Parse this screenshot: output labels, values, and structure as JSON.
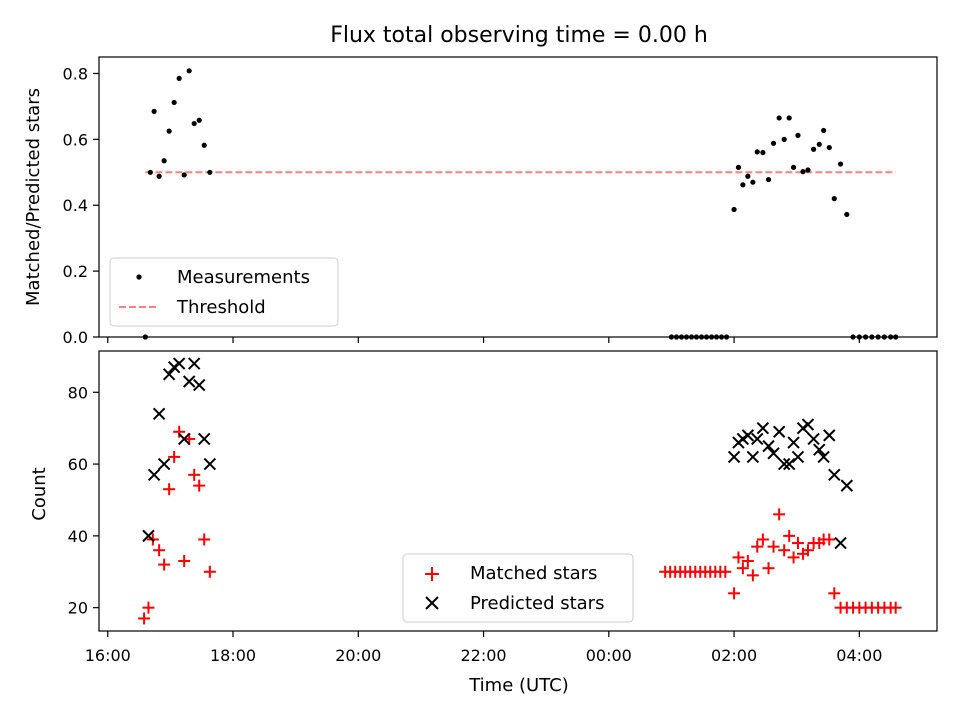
{
  "chart_data": [
    {
      "type": "scatter",
      "title": "Flux total observing time = 0.00 h",
      "xlabel": "",
      "ylabel": "Matched/Predicted stars",
      "xlim": [
        15.86,
        29.24
      ],
      "ylim": [
        0,
        0.85
      ],
      "yticks": [
        "0.0",
        "0.2",
        "0.4",
        "0.6",
        "0.8"
      ],
      "legend": {
        "position": "lower-left",
        "entries": [
          "Measurements",
          "Threshold"
        ]
      },
      "threshold": {
        "name": "Threshold",
        "value": 0.5,
        "x": [
          16.6,
          28.58
        ],
        "color": "#ff8080"
      },
      "series": [
        {
          "name": "Measurements",
          "color": "#000000",
          "points": [
            [
              16.6,
              0.0
            ],
            [
              16.68,
              0.5
            ],
            [
              16.74,
              0.685
            ],
            [
              16.82,
              0.488
            ],
            [
              16.9,
              0.535
            ],
            [
              16.98,
              0.625
            ],
            [
              17.06,
              0.712
            ],
            [
              17.14,
              0.785
            ],
            [
              17.22,
              0.492
            ],
            [
              17.3,
              0.808
            ],
            [
              17.38,
              0.648
            ],
            [
              17.46,
              0.658
            ],
            [
              17.54,
              0.582
            ],
            [
              17.63,
              0.5
            ],
            [
              26.0,
              0.387
            ],
            [
              26.07,
              0.515
            ],
            [
              26.14,
              0.462
            ],
            [
              26.22,
              0.488
            ],
            [
              26.3,
              0.47
            ],
            [
              26.37,
              0.562
            ],
            [
              26.46,
              0.56
            ],
            [
              26.55,
              0.478
            ],
            [
              26.63,
              0.588
            ],
            [
              26.72,
              0.665
            ],
            [
              26.8,
              0.6
            ],
            [
              26.88,
              0.665
            ],
            [
              26.95,
              0.515
            ],
            [
              27.02,
              0.612
            ],
            [
              27.1,
              0.502
            ],
            [
              27.18,
              0.507
            ],
            [
              27.27,
              0.57
            ],
            [
              27.36,
              0.585
            ],
            [
              27.43,
              0.627
            ],
            [
              27.52,
              0.575
            ],
            [
              27.6,
              0.42
            ],
            [
              27.7,
              0.525
            ],
            [
              27.8,
              0.372
            ],
            [
              25.0,
              0.0
            ],
            [
              25.08,
              0.0
            ],
            [
              25.16,
              0.0
            ],
            [
              25.24,
              0.0
            ],
            [
              25.32,
              0.0
            ],
            [
              25.4,
              0.0
            ],
            [
              25.48,
              0.0
            ],
            [
              25.56,
              0.0
            ],
            [
              25.64,
              0.0
            ],
            [
              25.72,
              0.0
            ],
            [
              25.8,
              0.0
            ],
            [
              25.88,
              0.0
            ],
            [
              27.9,
              0.0
            ],
            [
              28.0,
              0.0
            ],
            [
              28.1,
              0.0
            ],
            [
              28.2,
              0.0
            ],
            [
              28.3,
              0.0
            ],
            [
              28.4,
              0.0
            ],
            [
              28.5,
              0.0
            ],
            [
              28.58,
              0.0
            ]
          ]
        }
      ]
    },
    {
      "type": "scatter",
      "title": "",
      "xlabel": "Time (UTC)",
      "ylabel": "Count",
      "xlim": [
        15.86,
        29.24
      ],
      "ylim": [
        13.5,
        91.5
      ],
      "yticks": [
        "20",
        "40",
        "60",
        "80"
      ],
      "xticks": [
        {
          "value": 16,
          "label": "16:00"
        },
        {
          "value": 18,
          "label": "18:00"
        },
        {
          "value": 20,
          "label": "20:00"
        },
        {
          "value": 22,
          "label": "22:00"
        },
        {
          "value": 24,
          "label": "00:00"
        },
        {
          "value": 26,
          "label": "02:00"
        },
        {
          "value": 28,
          "label": "04:00"
        }
      ],
      "legend": {
        "position": "lower-center",
        "entries": [
          "Matched stars",
          "Predicted stars"
        ]
      },
      "series": [
        {
          "name": "Matched stars",
          "marker": "+",
          "color": "#ff0000",
          "points": [
            [
              16.58,
              17
            ],
            [
              16.65,
              20
            ],
            [
              16.72,
              39
            ],
            [
              16.82,
              36
            ],
            [
              16.9,
              32
            ],
            [
              16.98,
              53
            ],
            [
              17.06,
              62
            ],
            [
              17.14,
              69
            ],
            [
              17.22,
              33
            ],
            [
              17.3,
              67
            ],
            [
              17.38,
              57
            ],
            [
              17.46,
              54
            ],
            [
              17.54,
              39
            ],
            [
              17.63,
              30
            ],
            [
              24.9,
              30
            ],
            [
              24.98,
              30
            ],
            [
              25.06,
              30
            ],
            [
              25.14,
              30
            ],
            [
              25.22,
              30
            ],
            [
              25.3,
              30
            ],
            [
              25.38,
              30
            ],
            [
              25.46,
              30
            ],
            [
              25.54,
              30
            ],
            [
              25.62,
              30
            ],
            [
              25.7,
              30
            ],
            [
              25.78,
              30
            ],
            [
              25.86,
              30
            ],
            [
              26.0,
              24
            ],
            [
              26.07,
              34
            ],
            [
              26.14,
              31
            ],
            [
              26.22,
              33
            ],
            [
              26.3,
              29
            ],
            [
              26.37,
              37
            ],
            [
              26.46,
              39
            ],
            [
              26.55,
              31
            ],
            [
              26.63,
              37
            ],
            [
              26.72,
              46
            ],
            [
              26.8,
              36
            ],
            [
              26.88,
              40
            ],
            [
              26.95,
              34
            ],
            [
              27.02,
              38
            ],
            [
              27.1,
              35
            ],
            [
              27.18,
              36
            ],
            [
              27.27,
              38
            ],
            [
              27.36,
              38
            ],
            [
              27.43,
              39
            ],
            [
              27.52,
              39
            ],
            [
              27.6,
              24
            ],
            [
              27.7,
              20
            ],
            [
              27.8,
              20
            ],
            [
              27.9,
              20
            ],
            [
              28.0,
              20
            ],
            [
              28.1,
              20
            ],
            [
              28.2,
              20
            ],
            [
              28.3,
              20
            ],
            [
              28.4,
              20
            ],
            [
              28.5,
              20
            ],
            [
              28.58,
              20
            ]
          ]
        },
        {
          "name": "Predicted stars",
          "marker": "x",
          "color": "#000000",
          "points": [
            [
              16.65,
              40
            ],
            [
              16.74,
              57
            ],
            [
              16.82,
              74
            ],
            [
              16.9,
              60
            ],
            [
              16.98,
              85
            ],
            [
              17.06,
              87
            ],
            [
              17.14,
              88
            ],
            [
              17.22,
              67
            ],
            [
              17.3,
              83
            ],
            [
              17.38,
              88
            ],
            [
              17.46,
              82
            ],
            [
              17.54,
              67
            ],
            [
              17.63,
              60
            ],
            [
              26.0,
              62
            ],
            [
              26.07,
              66
            ],
            [
              26.14,
              67
            ],
            [
              26.22,
              68
            ],
            [
              26.3,
              62
            ],
            [
              26.37,
              67
            ],
            [
              26.46,
              70
            ],
            [
              26.55,
              65
            ],
            [
              26.63,
              63
            ],
            [
              26.72,
              69
            ],
            [
              26.8,
              60
            ],
            [
              26.88,
              60
            ],
            [
              26.95,
              66
            ],
            [
              27.02,
              62
            ],
            [
              27.1,
              70
            ],
            [
              27.18,
              71
            ],
            [
              27.27,
              67
            ],
            [
              27.36,
              64
            ],
            [
              27.43,
              62
            ],
            [
              27.52,
              68
            ],
            [
              27.6,
              57
            ],
            [
              27.7,
              38
            ],
            [
              27.8,
              54
            ]
          ]
        }
      ]
    }
  ]
}
